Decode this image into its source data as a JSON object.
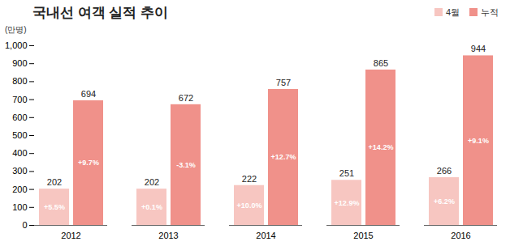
{
  "chart_data": {
    "type": "bar",
    "title": "국내선 여객 실적 추이",
    "y_label": "(만명)",
    "categories": [
      "2012",
      "2013",
      "2014",
      "2015",
      "2016"
    ],
    "series": [
      {
        "name": "4월",
        "color": "#f7c6c1",
        "values": [
          202,
          202,
          222,
          251,
          266
        ],
        "growth_labels": [
          "+5.5%",
          "+0.1%",
          "+10.0%",
          "+12.9%",
          "+6.2%"
        ]
      },
      {
        "name": "누적",
        "color": "#f0918a",
        "values": [
          694,
          672,
          757,
          865,
          944
        ],
        "growth_labels": [
          "+9.7%",
          "-3.1%",
          "+12.7%",
          "+14.2%",
          "+9.1%"
        ]
      }
    ],
    "ylim": [
      0,
      1000
    ],
    "yticks": [
      0,
      100,
      200,
      300,
      400,
      500,
      600,
      700,
      800,
      900,
      {
        "value": 1000,
        "label": "1,000"
      }
    ],
    "grid": false,
    "legend": "top-right",
    "data_labels": true
  }
}
